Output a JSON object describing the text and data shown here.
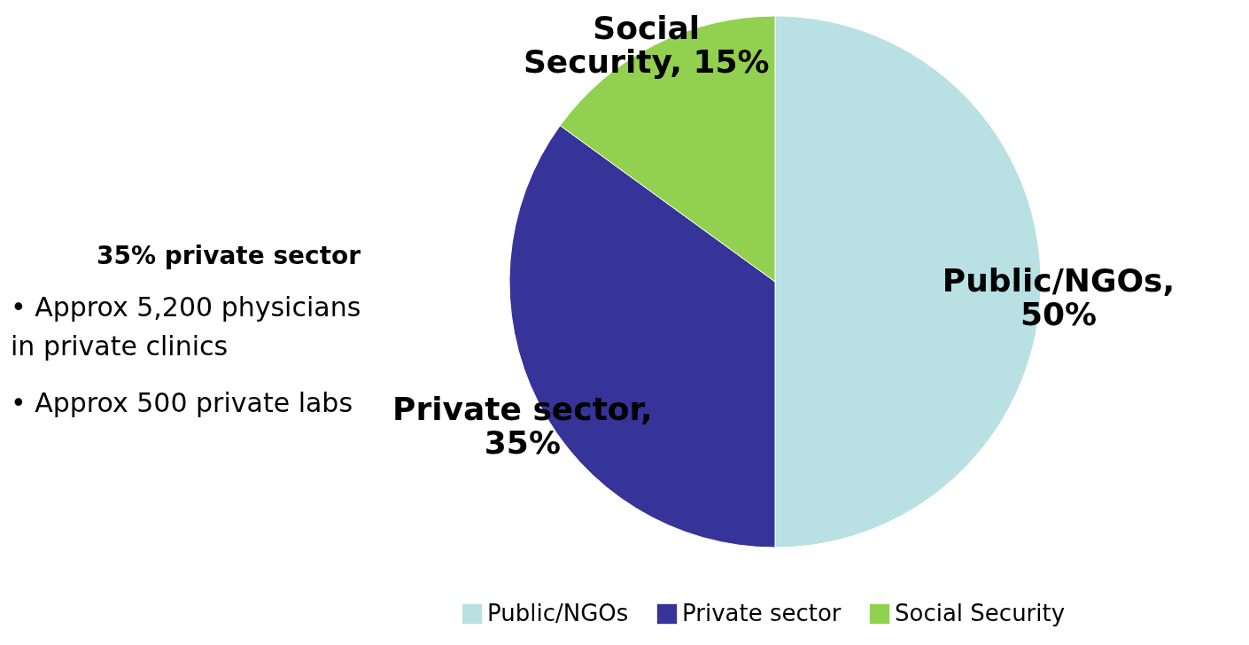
{
  "chart_data": {
    "type": "pie",
    "categories": [
      "Public/NGOs",
      "Private sector",
      "Social Security"
    ],
    "values": [
      50,
      35,
      15
    ],
    "colors": [
      "#b9e0e3",
      "#363399",
      "#92d050"
    ],
    "value_labels": [
      "Public/NGOs, 50%",
      "Private sector, 35%",
      "Social Security, 15%"
    ],
    "legend": "bottom",
    "annotations": [
      "35% private sector",
      "• Approx 5,200 physicians in private clinics",
      "• Approx 500 private labs"
    ]
  }
}
